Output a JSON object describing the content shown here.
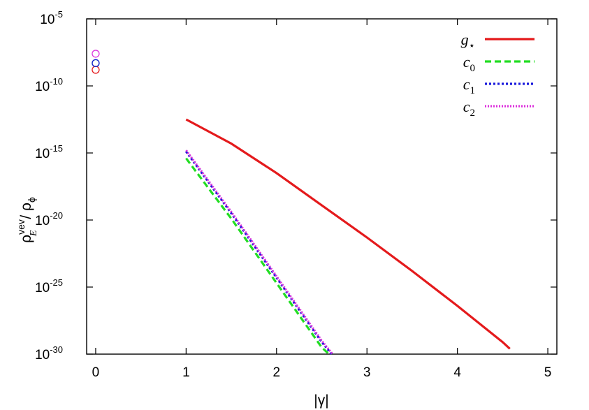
{
  "chart_data": {
    "type": "line",
    "xlabel": "|γ|",
    "ylabel": {
      "base": "ρ",
      "sub": "E",
      "sup": "vev",
      "divider": " / ",
      "base2": "ρ",
      "sub2": "ϕ"
    },
    "xlim": [
      -0.1,
      5.1
    ],
    "ylim_log10": [
      -30,
      -5
    ],
    "y_scale": "log",
    "grid": false,
    "legend_position": "top-right",
    "x_ticks": [
      "0",
      "1",
      "2",
      "3",
      "4",
      "5"
    ],
    "x_tick_values": [
      0,
      1,
      2,
      3,
      4,
      5
    ],
    "y_tick_exponents": [
      -5,
      -10,
      -15,
      -20,
      -25,
      -30
    ],
    "y_tick_base": "10",
    "y_tick_labels": [
      "-5",
      "-10",
      "-15",
      "-20",
      "-25",
      "-30"
    ],
    "series": [
      {
        "name": "g",
        "name_sub": "⋆",
        "color": "#e41a1c",
        "dash": "solid",
        "x": [
          1.0,
          1.5,
          2.0,
          2.5,
          3.0,
          3.5,
          4.0,
          4.5,
          4.58
        ],
        "log10_y": [
          -12.5,
          -14.3,
          -16.5,
          -18.9,
          -21.3,
          -23.8,
          -26.4,
          -29.1,
          -29.6
        ],
        "point_at_zero_log10_y": -8.8
      },
      {
        "name": "c",
        "name_sub": "0",
        "color": "#22dd22",
        "dash": "dashed",
        "x": [
          1.0,
          1.5,
          2.0,
          2.5,
          2.58
        ],
        "log10_y": [
          -15.4,
          -19.9,
          -24.7,
          -29.5,
          -30.0
        ],
        "point_at_zero_log10_y": -8.3
      },
      {
        "name": "c",
        "name_sub": "1",
        "color": "#1a1adc",
        "dash": "dotted",
        "x": [
          1.0,
          1.5,
          2.0,
          2.5,
          2.61
        ],
        "log10_y": [
          -14.9,
          -19.5,
          -24.3,
          -29.1,
          -30.0
        ],
        "point_at_zero_log10_y": -8.3
      },
      {
        "name": "c",
        "name_sub": "2",
        "color": "#dd33dd",
        "dash": "dotted-dense",
        "x": [
          1.0,
          1.5,
          2.0,
          2.5,
          2.62
        ],
        "log10_y": [
          -14.8,
          -19.4,
          -24.2,
          -29.0,
          -30.0
        ],
        "point_at_zero_log10_y": -7.6
      }
    ]
  }
}
